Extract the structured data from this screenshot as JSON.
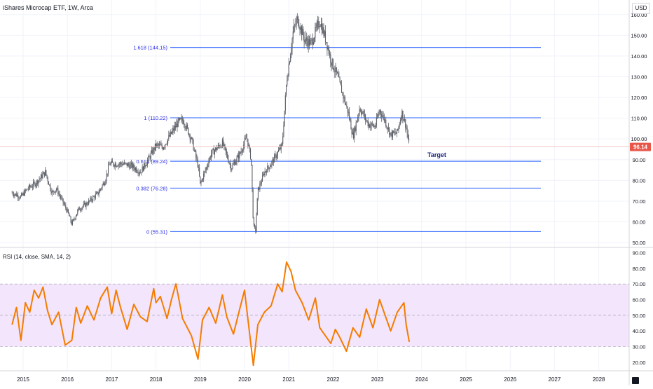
{
  "header": {
    "title": "iShares Microcap ETF, 1W, Arca",
    "currency": "USD"
  },
  "last_price": "96.14",
  "target_label": "Target",
  "rsi_title": "RSI (14, close, SMA, 14, 2)",
  "colors": {
    "candle": "#5d6068",
    "fib_line": "#2962ff",
    "fib_text": "#2a2ee6",
    "rsi_line": "#f57c00",
    "rsi_band": "#f3e5fb",
    "price_line": "#f0b4b4",
    "price_badge": "#e8564a",
    "grid": "#f0f3fa"
  },
  "chart_data": [
    {
      "type": "candlestick",
      "title": "iShares Microcap ETF, 1W, Arca",
      "x_axis": {
        "ticks": [
          "2015",
          "2016",
          "2017",
          "2018",
          "2019",
          "2020",
          "2021",
          "2022",
          "2023",
          "2024",
          "2025",
          "2026",
          "2027",
          "2028"
        ]
      },
      "y_axis": {
        "range": [
          48,
          165
        ],
        "ticks": [
          "50.00",
          "60.00",
          "70.00",
          "80.00",
          "90.00",
          "100.00",
          "110.00",
          "120.00",
          "130.00",
          "140.00",
          "150.00",
          "160.00"
        ],
        "position": "right"
      },
      "price_path": [
        [
          2014.75,
          74
        ],
        [
          2014.95,
          72
        ],
        [
          2015.1,
          76
        ],
        [
          2015.3,
          79
        ],
        [
          2015.5,
          84
        ],
        [
          2015.65,
          74
        ],
        [
          2015.75,
          76
        ],
        [
          2016.0,
          65
        ],
        [
          2016.1,
          59
        ],
        [
          2016.25,
          66
        ],
        [
          2016.45,
          69
        ],
        [
          2016.7,
          74
        ],
        [
          2016.85,
          80
        ],
        [
          2016.95,
          88
        ],
        [
          2017.25,
          88
        ],
        [
          2017.45,
          87
        ],
        [
          2017.65,
          84
        ],
        [
          2017.85,
          91
        ],
        [
          2018.0,
          97
        ],
        [
          2018.15,
          96
        ],
        [
          2018.3,
          101
        ],
        [
          2018.5,
          108
        ],
        [
          2018.62,
          109
        ],
        [
          2018.8,
          100
        ],
        [
          2018.95,
          87
        ],
        [
          2019.0,
          78
        ],
        [
          2019.25,
          93
        ],
        [
          2019.5,
          98
        ],
        [
          2019.7,
          86
        ],
        [
          2019.9,
          93
        ],
        [
          2020.05,
          101
        ],
        [
          2020.15,
          90
        ],
        [
          2020.2,
          58
        ],
        [
          2020.25,
          56
        ],
        [
          2020.3,
          75
        ],
        [
          2020.45,
          84
        ],
        [
          2020.6,
          88
        ],
        [
          2020.85,
          97
        ],
        [
          2020.95,
          128
        ],
        [
          2021.1,
          152
        ],
        [
          2021.2,
          158
        ],
        [
          2021.35,
          148
        ],
        [
          2021.5,
          146
        ],
        [
          2021.7,
          157
        ],
        [
          2021.85,
          147
        ],
        [
          2021.95,
          138
        ],
        [
          2022.1,
          130
        ],
        [
          2022.35,
          112
        ],
        [
          2022.45,
          101
        ],
        [
          2022.6,
          115
        ],
        [
          2022.8,
          107
        ],
        [
          2022.95,
          106
        ],
        [
          2023.05,
          114
        ],
        [
          2023.15,
          110
        ],
        [
          2023.3,
          102
        ],
        [
          2023.45,
          103
        ],
        [
          2023.55,
          113
        ],
        [
          2023.65,
          106
        ],
        [
          2023.72,
          96
        ]
      ],
      "last_price": 96.14,
      "fib_levels": [
        {
          "label": "1.618 (144.15)",
          "value": 144.15
        },
        {
          "label": "1 (110.22)",
          "value": 110.22
        },
        {
          "label": "0.618 (89.24)",
          "value": 89.24
        },
        {
          "label": "0.382 (76.28)",
          "value": 76.28
        },
        {
          "label": "0 (55.31)",
          "value": 55.31
        }
      ],
      "annotations": [
        {
          "text": "Target"
        }
      ]
    },
    {
      "type": "line",
      "title": "RSI (14, close, SMA, 14, 2)",
      "y_axis": {
        "range": [
          15,
          92
        ],
        "ticks": [
          "20.00",
          "30.00",
          "40.00",
          "50.00",
          "60.00",
          "70.00",
          "80.00",
          "90.00"
        ],
        "band": [
          30,
          70
        ],
        "midline": 50
      },
      "series": [
        {
          "color": "#f57c00",
          "points": [
            [
              2014.75,
              44
            ],
            [
              2014.85,
              55
            ],
            [
              2014.95,
              34
            ],
            [
              2015.05,
              58
            ],
            [
              2015.15,
              52
            ],
            [
              2015.25,
              66
            ],
            [
              2015.35,
              61
            ],
            [
              2015.45,
              68
            ],
            [
              2015.55,
              53
            ],
            [
              2015.65,
              44
            ],
            [
              2015.8,
              52
            ],
            [
              2015.95,
              31
            ],
            [
              2016.1,
              34
            ],
            [
              2016.2,
              55
            ],
            [
              2016.3,
              45
            ],
            [
              2016.45,
              56
            ],
            [
              2016.6,
              47
            ],
            [
              2016.75,
              61
            ],
            [
              2016.9,
              68
            ],
            [
              2017.0,
              51
            ],
            [
              2017.1,
              66
            ],
            [
              2017.2,
              55
            ],
            [
              2017.35,
              41
            ],
            [
              2017.5,
              57
            ],
            [
              2017.65,
              49
            ],
            [
              2017.8,
              46
            ],
            [
              2017.95,
              67
            ],
            [
              2018.0,
              58
            ],
            [
              2018.1,
              62
            ],
            [
              2018.25,
              48
            ],
            [
              2018.35,
              60
            ],
            [
              2018.45,
              70
            ],
            [
              2018.5,
              63
            ],
            [
              2018.6,
              48
            ],
            [
              2018.8,
              37
            ],
            [
              2018.95,
              22
            ],
            [
              2019.05,
              47
            ],
            [
              2019.2,
              55
            ],
            [
              2019.35,
              45
            ],
            [
              2019.5,
              63
            ],
            [
              2019.6,
              49
            ],
            [
              2019.75,
              38
            ],
            [
              2019.9,
              55
            ],
            [
              2020.0,
              66
            ],
            [
              2020.1,
              42
            ],
            [
              2020.2,
              18
            ],
            [
              2020.3,
              44
            ],
            [
              2020.45,
              52
            ],
            [
              2020.6,
              56
            ],
            [
              2020.75,
              70
            ],
            [
              2020.85,
              65
            ],
            [
              2020.95,
              84
            ],
            [
              2021.05,
              78
            ],
            [
              2021.15,
              66
            ],
            [
              2021.3,
              58
            ],
            [
              2021.45,
              47
            ],
            [
              2021.6,
              61
            ],
            [
              2021.7,
              42
            ],
            [
              2021.85,
              36
            ],
            [
              2021.95,
              32
            ],
            [
              2022.05,
              41
            ],
            [
              2022.15,
              36
            ],
            [
              2022.3,
              27
            ],
            [
              2022.45,
              42
            ],
            [
              2022.6,
              36
            ],
            [
              2022.75,
              54
            ],
            [
              2022.9,
              42
            ],
            [
              2023.05,
              60
            ],
            [
              2023.15,
              52
            ],
            [
              2023.3,
              40
            ],
            [
              2023.45,
              52
            ],
            [
              2023.6,
              58
            ],
            [
              2023.65,
              44
            ],
            [
              2023.72,
              33
            ]
          ]
        }
      ]
    }
  ]
}
